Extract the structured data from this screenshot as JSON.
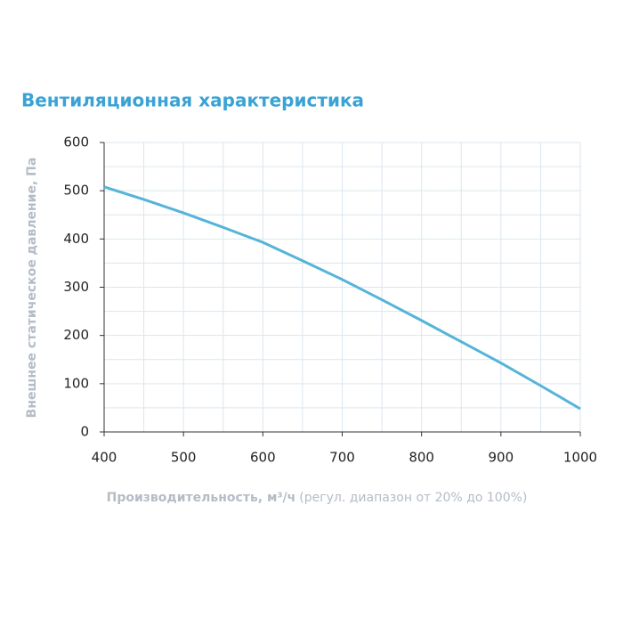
{
  "chart_data": {
    "type": "line",
    "title": "Вентиляционная характеристика",
    "ylabel": "Внешнее статическое давление, Па",
    "xlabel": "Производительность, м³/ч",
    "xlabel_note": "(регул. диапазон от 20% до 100%)",
    "x": [
      400,
      450,
      500,
      550,
      600,
      650,
      700,
      750,
      800,
      850,
      900,
      950,
      1000
    ],
    "series": [
      {
        "color": "#55b4d8",
        "values": [
          508,
          482,
          454,
          424,
          393,
          355,
          316,
          274,
          231,
          187,
          143,
          96,
          48
        ]
      }
    ],
    "xlim": [
      400,
      1000
    ],
    "xticks": [
      400,
      500,
      600,
      700,
      800,
      900,
      1000
    ],
    "ylim": [
      0,
      600
    ],
    "yticks": [
      0,
      100,
      200,
      300,
      400,
      500,
      600
    ],
    "xgrid": [
      450,
      500,
      550,
      600,
      650,
      700,
      750,
      800,
      850,
      900,
      950,
      1000
    ],
    "ygrid": [
      50,
      100,
      150,
      200,
      250,
      300,
      350,
      400,
      450,
      500,
      550,
      600
    ],
    "grid": true
  }
}
